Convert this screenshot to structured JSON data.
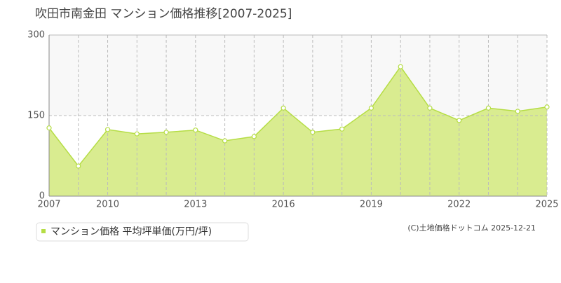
{
  "chart_data": {
    "type": "area",
    "title": "吹田市南金田 マンション価格推移[2007-2025]",
    "categories": [
      "2007",
      null,
      "2010",
      null,
      null,
      "2013",
      null,
      null,
      "2016",
      null,
      null,
      "2019",
      null,
      null,
      "2022",
      null,
      null,
      "2025"
    ],
    "series": [
      {
        "name": "マンション価格 平均坪単価(万円/坪)",
        "color": "#b5dd45",
        "values": [
          127,
          56,
          124,
          116,
          119,
          123,
          103,
          111,
          164,
          119,
          125,
          164,
          241,
          164,
          141,
          164,
          158,
          166
        ]
      }
    ],
    "ylim": [
      0,
      300
    ],
    "yticks": [
      0,
      150,
      300
    ],
    "grid": true,
    "credit": "(C)土地価格ドットコム 2025-12-21"
  }
}
